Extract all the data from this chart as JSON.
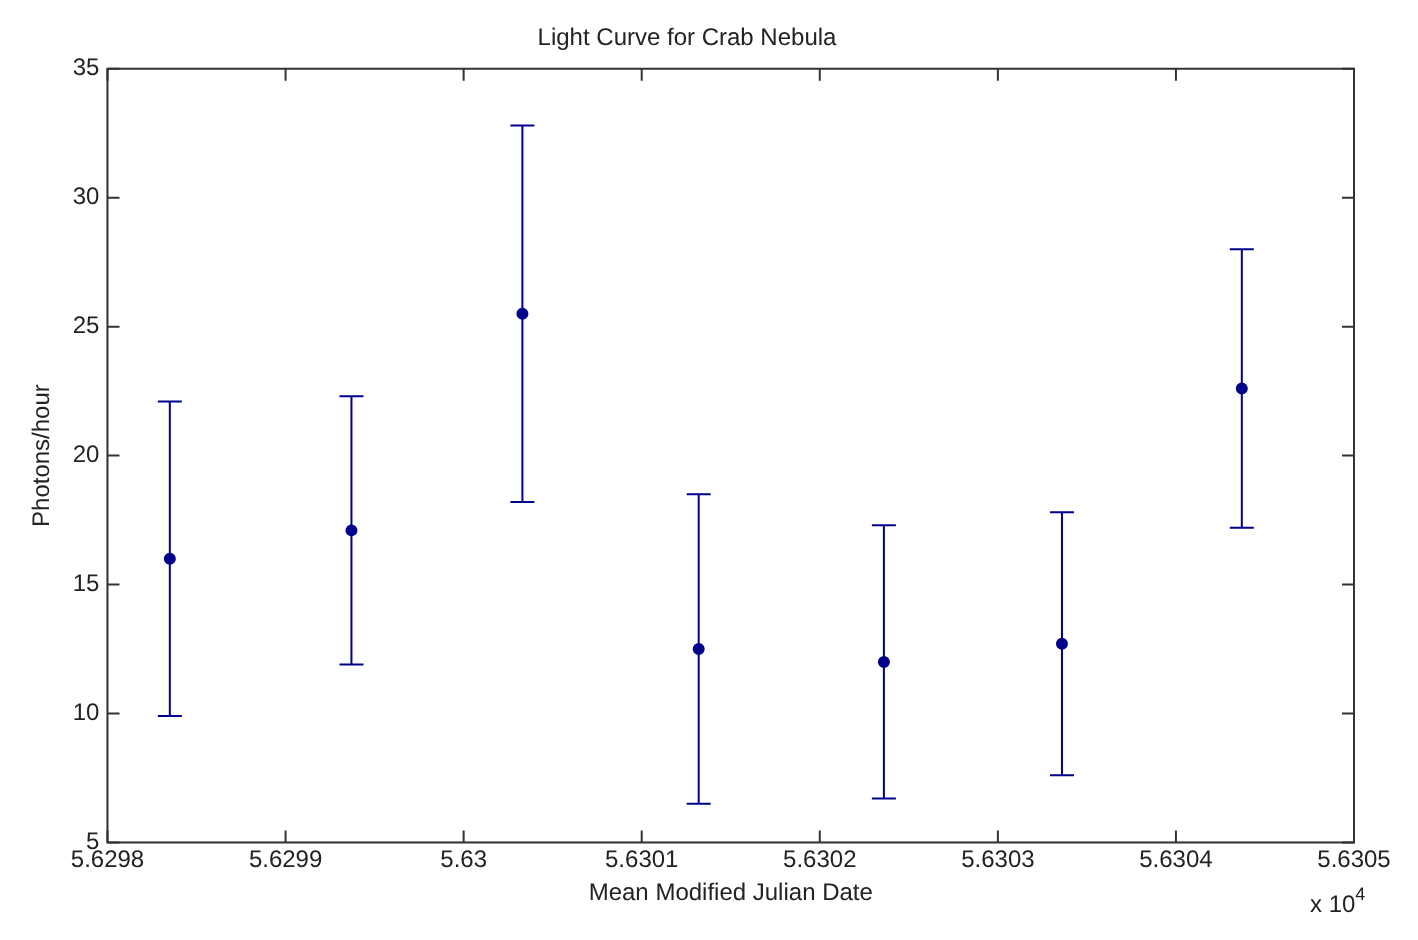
{
  "chart_data": {
    "type": "scatter",
    "title": "Light Curve for Crab Nebula",
    "xlabel": "Mean Modified Julian Date",
    "ylabel": "Photons/hour",
    "x": [
      5.629835,
      5.629937,
      5.630033,
      5.630132,
      5.630236,
      5.630336,
      5.630437
    ],
    "series": [
      {
        "color": "#00008b",
        "values": [
          16.0,
          17.1,
          25.5,
          12.5,
          12.0,
          12.7,
          22.6
        ],
        "errors": [
          6.1,
          5.2,
          7.3,
          6.0,
          5.3,
          5.1,
          5.4
        ]
      }
    ],
    "xlim": [
      5.6298,
      5.6305
    ],
    "xticks": [
      5.6298,
      5.6299,
      5.63,
      5.6301,
      5.6302,
      5.6303,
      5.6304,
      5.6305
    ],
    "ylim": [
      5,
      35
    ],
    "yticks": [
      5,
      10,
      15,
      20,
      25,
      30,
      35
    ],
    "annotations": [
      "x 10$^{4}$"
    ],
    "grid": false,
    "legend": false,
    "marker": "circle"
  }
}
